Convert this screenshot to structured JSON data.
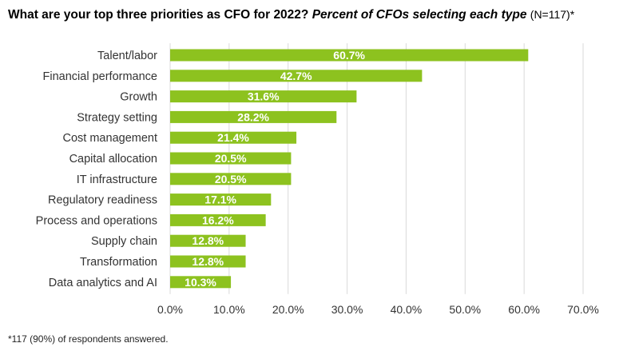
{
  "title": {
    "main": "What are your top three priorities as CFO for 2022?",
    "emphasis": "Percent of CFOs selecting each type",
    "sample": "(N=117)*"
  },
  "footnote": "*117 (90%) of respondents answered.",
  "colors": {
    "bar": "#8dc21f",
    "grid": "#d9d9d9",
    "label": "#ffffff",
    "text": "#333333"
  },
  "chart_data": {
    "type": "bar",
    "orientation": "horizontal",
    "categories": [
      "Talent/labor",
      "Financial performance",
      "Growth",
      "Strategy setting",
      "Cost management",
      "Capital allocation",
      "IT infrastructure",
      "Regulatory readiness",
      "Process and operations",
      "Supply chain",
      "Transformation",
      "Data analytics and AI"
    ],
    "values": [
      60.7,
      42.7,
      31.6,
      28.2,
      21.4,
      20.5,
      20.5,
      17.1,
      16.2,
      12.8,
      12.8,
      10.3
    ],
    "data_labels": [
      "60.7%",
      "42.7%",
      "31.6%",
      "28.2%",
      "21.4%",
      "20.5%",
      "20.5%",
      "17.1%",
      "16.2%",
      "12.8%",
      "12.8%",
      "10.3%"
    ],
    "x_ticks": [
      0,
      10,
      20,
      30,
      40,
      50,
      60,
      70
    ],
    "x_tick_labels": [
      "0.0%",
      "10.0%",
      "20.0%",
      "30.0%",
      "40.0%",
      "50.0%",
      "60.0%",
      "70.0%"
    ],
    "xlim": [
      0,
      70
    ],
    "xlabel": "",
    "ylabel": "",
    "grid": true,
    "legend": "none"
  }
}
